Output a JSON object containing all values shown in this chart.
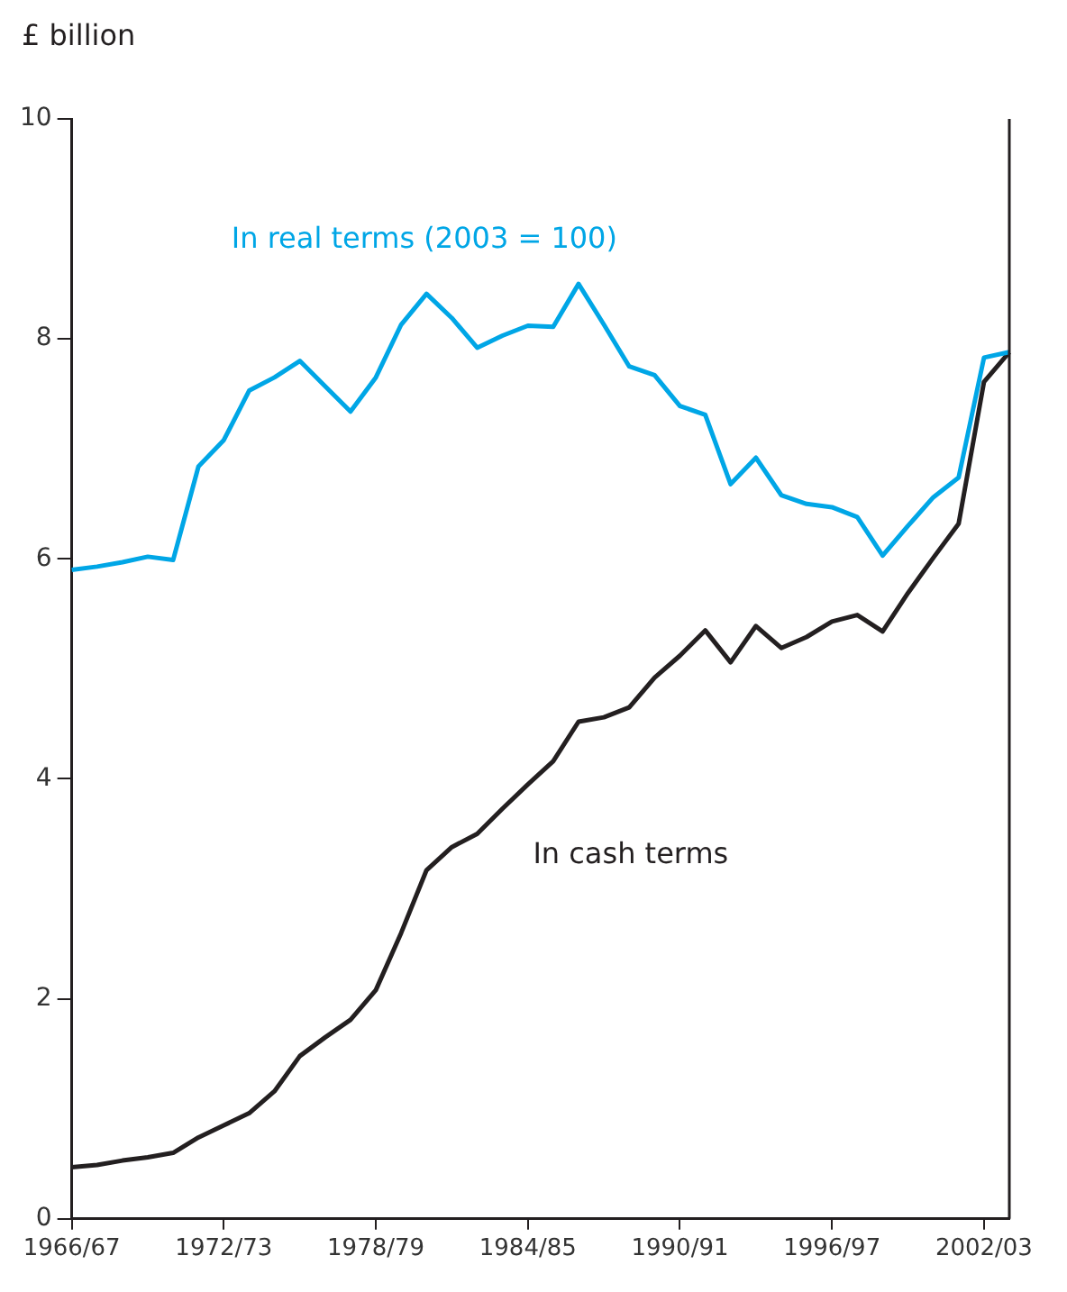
{
  "chart_data": {
    "type": "line",
    "ylabel": "£ billion",
    "categories": [
      "1966/67",
      null,
      null,
      null,
      null,
      null,
      "1972/73",
      null,
      null,
      null,
      null,
      null,
      "1978/79",
      null,
      null,
      null,
      null,
      null,
      "1984/85",
      null,
      null,
      null,
      null,
      null,
      "1990/91",
      null,
      null,
      null,
      null,
      null,
      "1996/97",
      null,
      null,
      null,
      null,
      null,
      "2002/03",
      null
    ],
    "series": [
      {
        "name": "In real terms (2003 = 100)",
        "color": "#00a6e6",
        "values": [
          5.9,
          5.93,
          5.97,
          6.02,
          5.99,
          6.84,
          7.08,
          7.53,
          7.65,
          7.8,
          7.57,
          7.34,
          7.65,
          8.13,
          8.41,
          8.19,
          7.92,
          8.03,
          8.12,
          8.11,
          8.5,
          8.13,
          7.75,
          7.67,
          7.39,
          7.31,
          6.68,
          6.92,
          6.58,
          6.5,
          6.47,
          6.38,
          6.03,
          6.3,
          6.56,
          6.74,
          7.83,
          7.88
        ]
      },
      {
        "name": "In cash terms",
        "color": "#231f20",
        "values": [
          0.47,
          0.49,
          0.53,
          0.56,
          0.6,
          0.74,
          0.85,
          0.96,
          1.16,
          1.48,
          1.65,
          1.81,
          2.08,
          2.6,
          3.17,
          3.38,
          3.5,
          3.73,
          3.95,
          4.16,
          4.52,
          4.56,
          4.65,
          4.92,
          5.12,
          5.35,
          5.06,
          5.39,
          5.19,
          5.29,
          5.43,
          5.49,
          5.34,
          5.69,
          6.01,
          6.32,
          7.61,
          7.88
        ]
      }
    ],
    "ylim": [
      0,
      10
    ],
    "yticks": [
      0,
      2,
      4,
      6,
      8,
      10
    ],
    "grid": false,
    "legend": false,
    "marker": "none",
    "line_style": "solid"
  }
}
